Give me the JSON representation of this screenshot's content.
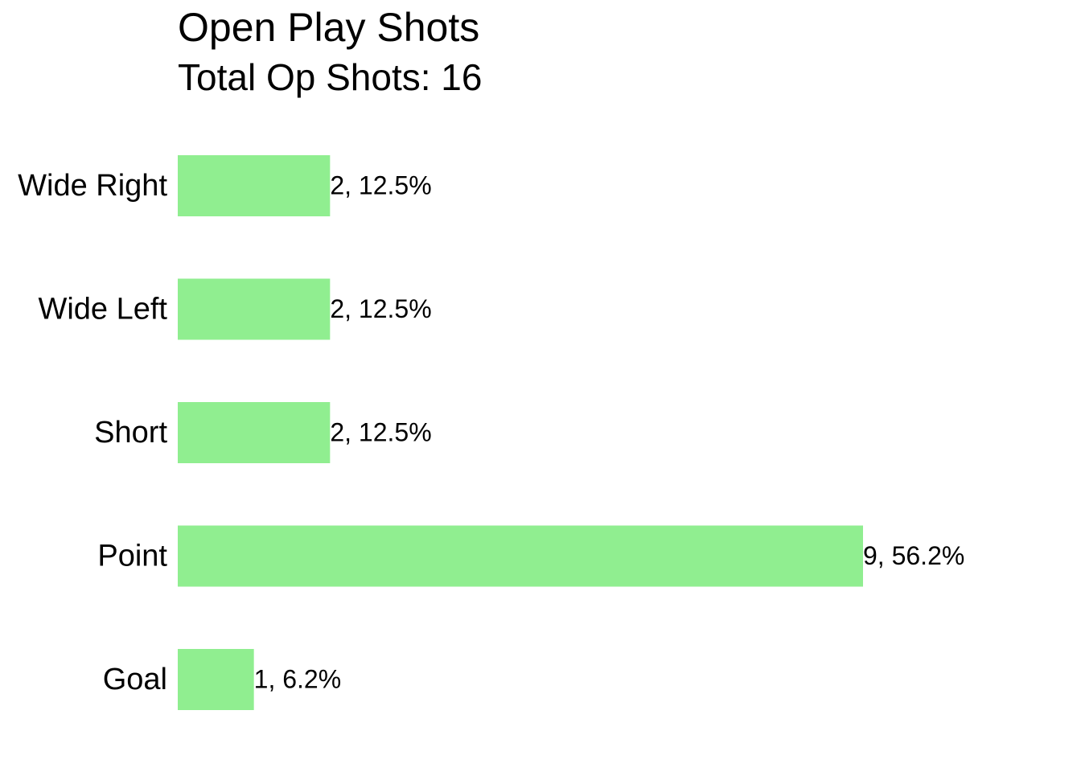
{
  "chart_data": {
    "type": "bar",
    "orientation": "horizontal",
    "title": "Open Play Shots",
    "subtitle": "Total Op Shots: 16",
    "categories": [
      "Wide Right",
      "Wide Left",
      "Short",
      "Point",
      "Goal"
    ],
    "values": [
      2,
      2,
      2,
      9,
      1
    ],
    "value_labels": [
      "2, 12.5%",
      "2, 12.5%",
      "2, 12.5%",
      "9, 56.2%",
      "1, 6.2%"
    ],
    "color": "#90ee90"
  }
}
